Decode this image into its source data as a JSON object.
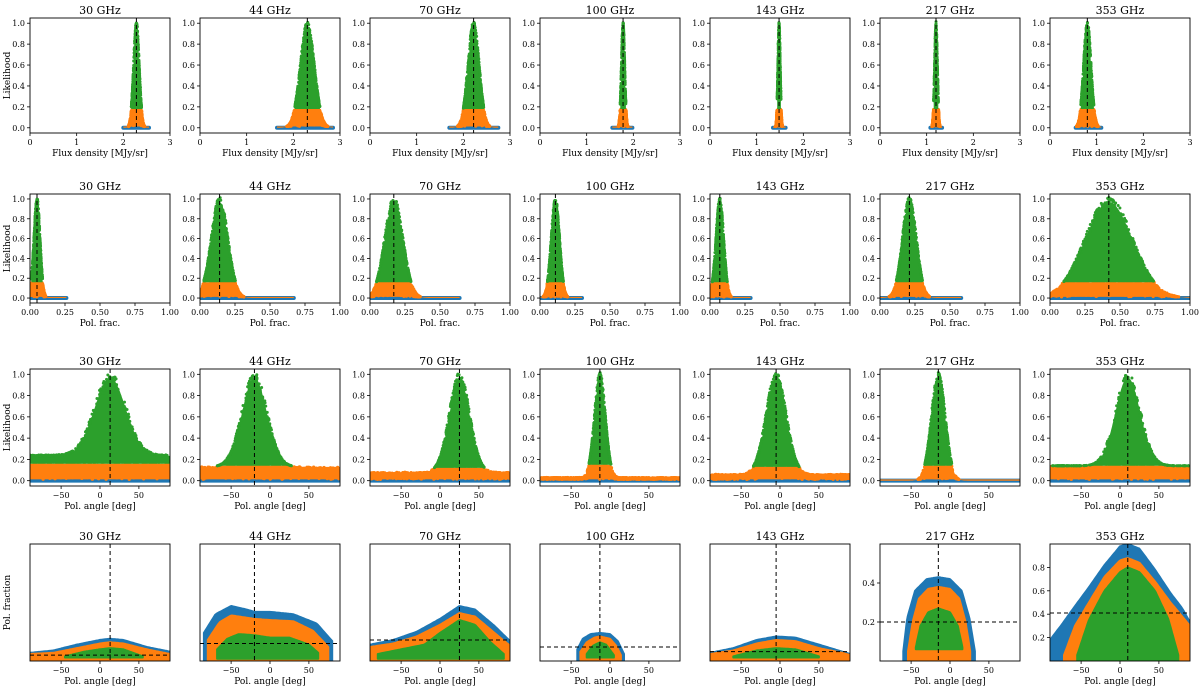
{
  "colors": {
    "green": "#2ca02c",
    "orange": "#ff7f0e",
    "blue": "#1f77b4",
    "axis": "#000000"
  },
  "chart_data": [
    {
      "type": "scatter",
      "row": "flux",
      "ylabel": "Likelihood",
      "xlabel": "Flux density [MJy/sr]",
      "xlim": [
        0,
        3
      ],
      "ylim": [
        -0.05,
        1.05
      ],
      "xticks": [
        "0",
        "1",
        "2",
        "3"
      ],
      "yticks": [
        "0.0",
        "0.2",
        "0.4",
        "0.6",
        "0.8",
        "1.0"
      ],
      "orange_level": 0.18,
      "blue_level": 0.0,
      "panels": [
        {
          "title": "30 GHz",
          "peak": 2.28,
          "width": 0.06,
          "blue_range": [
            2.0,
            2.55
          ]
        },
        {
          "title": "44 GHz",
          "peak": 2.3,
          "width": 0.15,
          "blue_range": [
            1.65,
            2.85
          ]
        },
        {
          "title": "70 GHz",
          "peak": 2.22,
          "width": 0.12,
          "blue_range": [
            1.7,
            2.75
          ]
        },
        {
          "title": "100 GHz",
          "peak": 1.78,
          "width": 0.035,
          "blue_range": [
            1.55,
            1.98
          ]
        },
        {
          "title": "143 GHz",
          "peak": 1.48,
          "width": 0.025,
          "blue_range": [
            1.35,
            1.62
          ]
        },
        {
          "title": "217 GHz",
          "peak": 1.2,
          "width": 0.03,
          "blue_range": [
            1.08,
            1.33
          ]
        },
        {
          "title": "353 GHz",
          "peak": 0.8,
          "width": 0.08,
          "blue_range": [
            0.55,
            1.1
          ]
        }
      ]
    },
    {
      "type": "scatter",
      "row": "polfrac",
      "ylabel": "Likelihood",
      "xlabel": "Pol. frac.",
      "xlim": [
        0,
        1
      ],
      "ylim": [
        -0.05,
        1.05
      ],
      "xticks": [
        "0.00",
        "0.25",
        "0.50",
        "0.75",
        "1.00"
      ],
      "yticks": [
        "0.0",
        "0.2",
        "0.4",
        "0.6",
        "0.8",
        "1.0"
      ],
      "orange_level": 0.16,
      "blue_level": 0.0,
      "panels": [
        {
          "title": "30 GHz",
          "peak": 0.05,
          "width": 0.022,
          "blue_range": [
            0.0,
            0.26
          ]
        },
        {
          "title": "44 GHz",
          "peak": 0.14,
          "width": 0.06,
          "blue_range": [
            0.0,
            0.67
          ]
        },
        {
          "title": "70 GHz",
          "peak": 0.17,
          "width": 0.065,
          "blue_range": [
            0.0,
            0.64
          ]
        },
        {
          "title": "100 GHz",
          "peak": 0.11,
          "width": 0.03,
          "blue_range": [
            0.0,
            0.3
          ]
        },
        {
          "title": "143 GHz",
          "peak": 0.07,
          "width": 0.028,
          "blue_range": [
            0.0,
            0.29
          ]
        },
        {
          "title": "217 GHz",
          "peak": 0.21,
          "width": 0.05,
          "blue_range": [
            0.0,
            0.58
          ]
        },
        {
          "title": "353 GHz",
          "peak": 0.42,
          "width": 0.17,
          "blue_range": [
            0.0,
            1.0
          ]
        }
      ]
    },
    {
      "type": "scatter",
      "row": "polangle",
      "ylabel": "Likelihood",
      "xlabel": "Pol. angle [deg]",
      "xlim": [
        -90,
        90
      ],
      "ylim": [
        -0.05,
        1.05
      ],
      "xticks": [
        "−50",
        "0",
        "50"
      ],
      "xtick_values": [
        -50,
        0,
        50
      ],
      "yticks": [
        "0.0",
        "0.2",
        "0.4",
        "0.6",
        "0.8",
        "1.0"
      ],
      "panels": [
        {
          "title": "30 GHz",
          "peak": 13,
          "width": 20,
          "floor_orange": 0.16,
          "floor_green": 0.24,
          "blue_level": 0.0
        },
        {
          "title": "44 GHz",
          "peak": -20,
          "width": 16,
          "floor_orange": 0.14,
          "floor_green": 0.13,
          "blue_level": 0.0
        },
        {
          "title": "70 GHz",
          "peak": 25,
          "width": 13,
          "floor_orange": 0.12,
          "floor_green": 0.08,
          "blue_level": 0.0
        },
        {
          "title": "100 GHz",
          "peak": -13,
          "width": 7,
          "floor_orange": 0.15,
          "floor_green": 0.03,
          "blue_level": 0.0
        },
        {
          "title": "143 GHz",
          "peak": -5,
          "width": 13,
          "floor_orange": 0.13,
          "floor_green": 0.06,
          "blue_level": 0.0
        },
        {
          "title": "217 GHz",
          "peak": -15,
          "width": 9,
          "floor_orange": 0.14,
          "floor_green": 0.0,
          "blue_level": 0.0
        },
        {
          "title": "353 GHz",
          "peak": 10,
          "width": 16,
          "floor_orange": 0.14,
          "floor_green": 0.14,
          "blue_level": 0.0
        }
      ]
    },
    {
      "type": "area",
      "row": "contour",
      "ylabel": "Pol. fraction",
      "xlabel": "Pol. angle [deg]",
      "xlim": [
        -90,
        90
      ],
      "xticks": [
        "−50",
        "0",
        "50"
      ],
      "xtick_values": [
        -50,
        0,
        50
      ],
      "panels": [
        {
          "title": "30 GHz",
          "ylim": [
            0.0,
            1.0
          ],
          "yticks": [],
          "vline": 13,
          "hline": 0.05,
          "blue": {
            "x": [
              -90,
              -60,
              -30,
              0,
              13,
              30,
              60,
              90
            ],
            "top": [
              0.07,
              0.09,
              0.14,
              0.18,
              0.19,
              0.18,
              0.12,
              0.08
            ],
            "bottom": 0.0
          },
          "orange": {
            "x": [
              -90,
              -60,
              -30,
              0,
              13,
              30,
              60,
              90
            ],
            "top": [
              0.06,
              0.07,
              0.11,
              0.15,
              0.16,
              0.15,
              0.1,
              0.06
            ],
            "bottom": 0.0
          },
          "green": {
            "x": [
              -45,
              -20,
              0,
              13,
              30,
              55
            ],
            "top": [
              0.04,
              0.08,
              0.1,
              0.11,
              0.1,
              0.04
            ],
            "bottom": 0.03
          }
        },
        {
          "title": "44 GHz",
          "ylim": [
            0.0,
            1.0
          ],
          "yticks": [],
          "vline": -20,
          "hline": 0.15,
          "blue": {
            "x": [
              -85,
              -70,
              -50,
              -30,
              -20,
              0,
              30,
              60,
              80
            ],
            "top": [
              0.24,
              0.4,
              0.47,
              0.44,
              0.42,
              0.42,
              0.4,
              0.32,
              0.17
            ],
            "bottom": 0.0
          },
          "orange": {
            "x": [
              -80,
              -65,
              -50,
              -30,
              -20,
              0,
              30,
              55,
              75
            ],
            "top": [
              0.18,
              0.33,
              0.39,
              0.37,
              0.36,
              0.35,
              0.34,
              0.26,
              0.12
            ],
            "bottom": 0.0
          },
          "green": {
            "x": [
              -68,
              -55,
              -40,
              -20,
              0,
              25,
              50,
              62
            ],
            "top": [
              0.1,
              0.19,
              0.23,
              0.22,
              0.2,
              0.2,
              0.14,
              0.07
            ],
            "bottom": 0.02
          }
        },
        {
          "title": "70 GHz",
          "ylim": [
            0.0,
            1.0
          ],
          "yticks": [],
          "vline": 25,
          "hline": 0.18,
          "blue": {
            "x": [
              -90,
              -60,
              -30,
              0,
              25,
              45,
              70,
              90
            ],
            "top": [
              0.14,
              0.18,
              0.25,
              0.36,
              0.47,
              0.44,
              0.3,
              0.17
            ],
            "bottom": 0.0
          },
          "orange": {
            "x": [
              -90,
              -60,
              -30,
              0,
              25,
              45,
              70,
              90
            ],
            "top": [
              0.12,
              0.15,
              0.21,
              0.31,
              0.41,
              0.38,
              0.24,
              0.13
            ],
            "bottom": 0.0
          },
          "green": {
            "x": [
              -80,
              -50,
              -20,
              0,
              25,
              45,
              65,
              82
            ],
            "top": [
              0.06,
              0.1,
              0.14,
              0.24,
              0.35,
              0.31,
              0.16,
              0.06
            ],
            "bottom": 0.02
          }
        },
        {
          "title": "100 GHz",
          "ylim": [
            0.0,
            1.0
          ],
          "yticks": [],
          "vline": -13,
          "hline": 0.12,
          "blue": {
            "x": [
              -42,
              -35,
              -25,
              -13,
              0,
              10,
              18
            ],
            "top": [
              0.1,
              0.19,
              0.23,
              0.24,
              0.23,
              0.17,
              0.06
            ],
            "bottom": 0.0
          },
          "orange": {
            "x": [
              -38,
              -30,
              -20,
              -13,
              0,
              8,
              14
            ],
            "top": [
              0.08,
              0.16,
              0.2,
              0.21,
              0.19,
              0.13,
              0.05
            ],
            "bottom": 0.01
          },
          "green": {
            "x": [
              -30,
              -22,
              -13,
              -5,
              5
            ],
            "top": [
              0.06,
              0.13,
              0.16,
              0.14,
              0.05
            ],
            "bottom": 0.03
          }
        },
        {
          "title": "143 GHz",
          "ylim": [
            0.0,
            1.0
          ],
          "yticks": [],
          "vline": -5,
          "hline": 0.08,
          "blue": {
            "x": [
              -90,
              -60,
              -30,
              -5,
              20,
              50,
              80,
              90
            ],
            "top": [
              0.07,
              0.11,
              0.18,
              0.21,
              0.2,
              0.14,
              0.08,
              0.06
            ],
            "bottom": 0.0
          },
          "orange": {
            "x": [
              -90,
              -60,
              -30,
              -5,
              20,
              50,
              80,
              90
            ],
            "top": [
              0.06,
              0.09,
              0.15,
              0.18,
              0.17,
              0.11,
              0.07,
              0.05
            ],
            "bottom": 0.0
          },
          "green": {
            "x": [
              -60,
              -30,
              -5,
              20,
              50
            ],
            "top": [
              0.04,
              0.09,
              0.11,
              0.1,
              0.04
            ],
            "bottom": 0.03
          }
        },
        {
          "title": "217 GHz",
          "ylim": [
            0.0,
            0.6
          ],
          "yticks": [
            "0.2",
            "0.4"
          ],
          "ytick_values": [
            0.2,
            0.4
          ],
          "vline": -15,
          "hline": 0.2,
          "blue": {
            "x": [
              -60,
              -55,
              -45,
              -30,
              -15,
              0,
              15,
              25,
              32
            ],
            "top": [
              0.05,
              0.22,
              0.36,
              0.42,
              0.43,
              0.42,
              0.36,
              0.22,
              0.05
            ],
            "bottom": 0.0
          },
          "orange": {
            "x": [
              -54,
              -48,
              -40,
              -28,
              -15,
              0,
              12,
              20,
              26
            ],
            "top": [
              0.05,
              0.2,
              0.32,
              0.37,
              0.38,
              0.37,
              0.32,
              0.2,
              0.05
            ],
            "bottom": 0.0
          },
          "green": {
            "x": [
              -44,
              -38,
              -28,
              -15,
              0,
              10,
              16
            ],
            "top": [
              0.07,
              0.18,
              0.25,
              0.27,
              0.25,
              0.18,
              0.07
            ],
            "bottom": 0.06
          }
        },
        {
          "title": "353 GHz",
          "ylim": [
            0.0,
            1.0
          ],
          "yticks": [
            "0.2",
            "0.4",
            "0.6",
            "0.8"
          ],
          "ytick_values": [
            0.2,
            0.4,
            0.6,
            0.8
          ],
          "vline": 10,
          "hline": 0.41,
          "blue": {
            "x": [
              -90,
              -75,
              -60,
              -40,
              -20,
              0,
              10,
              25,
              45,
              65,
              80,
              90
            ],
            "top": [
              0.18,
              0.31,
              0.45,
              0.63,
              0.82,
              0.98,
              1.0,
              0.96,
              0.78,
              0.58,
              0.45,
              0.33
            ],
            "bottom": 0.0
          },
          "orange": {
            "x": [
              -72,
              -58,
              -40,
              -20,
              0,
              10,
              25,
              45,
              65,
              80,
              90
            ],
            "top": [
              0.05,
              0.3,
              0.5,
              0.72,
              0.86,
              0.88,
              0.84,
              0.68,
              0.5,
              0.38,
              0.3
            ],
            "bottom": 0.0
          },
          "green": {
            "x": [
              -55,
              -40,
              -20,
              0,
              10,
              25,
              45,
              62,
              75
            ],
            "top": [
              0.05,
              0.35,
              0.6,
              0.76,
              0.8,
              0.76,
              0.6,
              0.36,
              0.05
            ],
            "bottom": 0.0
          }
        }
      ]
    }
  ]
}
